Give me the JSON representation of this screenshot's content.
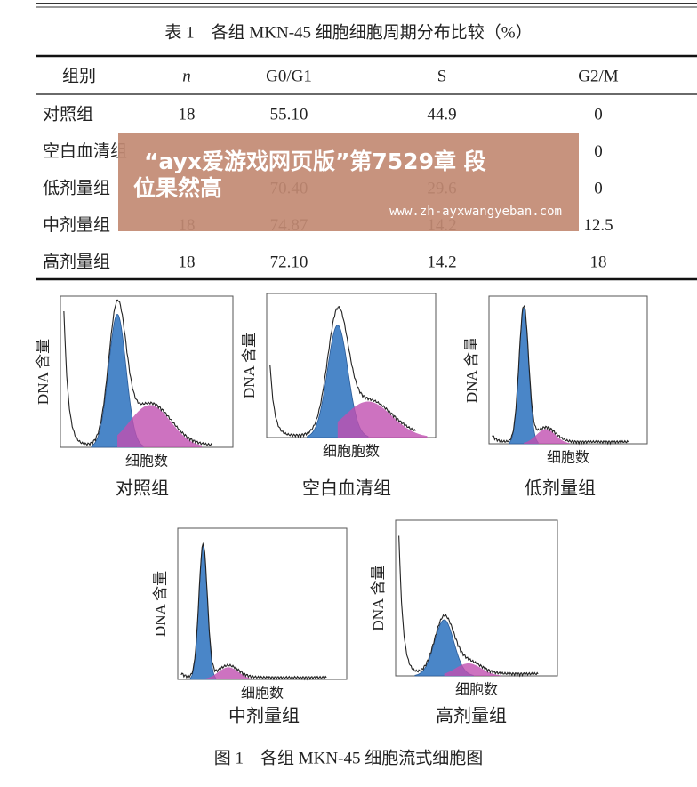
{
  "table": {
    "title": "表 1　各组 MKN-45 细胞细胞周期分布比较（%）",
    "headers": [
      "组别",
      "n",
      "G0/G1",
      "S",
      "G2/M"
    ],
    "rows": [
      {
        "group": "对照组",
        "n": "18",
        "g0g1": "55.10",
        "s": "44.9",
        "g2m": "0"
      },
      {
        "group": "空白血清组",
        "g2m": "0"
      },
      {
        "group": "低剂量组",
        "g0g1": "70.40",
        "s": "29.6",
        "g2m": "0"
      },
      {
        "group": "中剂量组",
        "n": "18",
        "g0g1": "74.87",
        "s": "14.2",
        "g2m": "12.5"
      },
      {
        "group": "高剂量组",
        "n": "18",
        "g0g1": "72.10",
        "s": "14.2",
        "g2m": "18"
      }
    ]
  },
  "watermark": {
    "lines": [
      "“ayx爱游戏网页版”第7529章 段",
      "位果然高"
    ],
    "url": "www.zh-ayxwangyeban.com"
  },
  "figure": {
    "panels": [
      {
        "ylabel": "DNA 含量",
        "xlabel": "细胞数",
        "caption": "对照组"
      },
      {
        "ylabel": "DNA 含量",
        "xlabel": "细胞胞数",
        "caption": "空白血清组"
      },
      {
        "ylabel": "DNA 含量",
        "xlabel": "细胞数",
        "caption": "低剂量组"
      },
      {
        "ylabel": "DNA 含量",
        "xlabel": "细胞数",
        "caption": "中剂量组"
      },
      {
        "ylabel": "DNA 含量",
        "xlabel": "细胞数",
        "caption": "高剂量组"
      }
    ],
    "caption": "图 1　各组 MKN-45 细胞流式细胞图"
  }
}
